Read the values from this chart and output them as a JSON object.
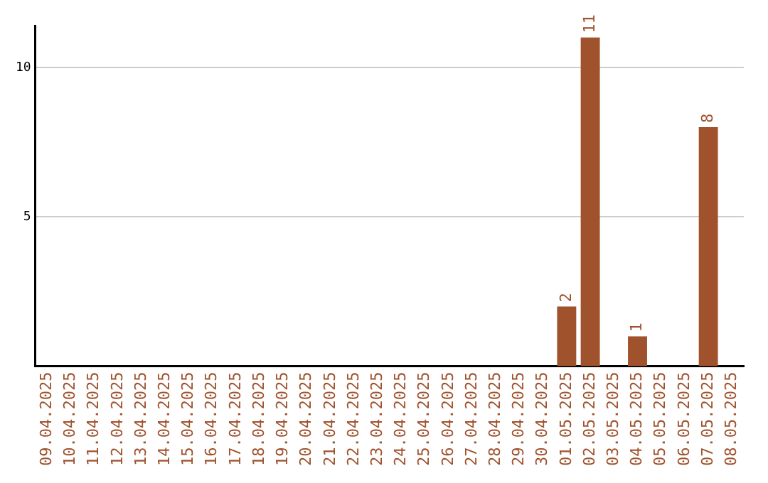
{
  "chart_data": {
    "type": "bar",
    "categories": [
      "09.04.2025",
      "10.04.2025",
      "11.04.2025",
      "12.04.2025",
      "13.04.2025",
      "14.04.2025",
      "15.04.2025",
      "16.04.2025",
      "17.04.2025",
      "18.04.2025",
      "19.04.2025",
      "20.04.2025",
      "21.04.2025",
      "22.04.2025",
      "23.04.2025",
      "24.04.2025",
      "25.04.2025",
      "26.04.2025",
      "27.04.2025",
      "28.04.2025",
      "29.04.2025",
      "30.04.2025",
      "01.05.2025",
      "02.05.2025",
      "03.05.2025",
      "04.05.2025",
      "05.05.2025",
      "06.05.2025",
      "07.05.2025",
      "08.05.2025"
    ],
    "values": [
      0,
      0,
      0,
      0,
      0,
      0,
      0,
      0,
      0,
      0,
      0,
      0,
      0,
      0,
      0,
      0,
      0,
      0,
      0,
      0,
      0,
      0,
      2,
      11,
      0,
      1,
      0,
      0,
      8,
      0
    ],
    "value_labels": [
      null,
      null,
      null,
      null,
      null,
      null,
      null,
      null,
      null,
      null,
      null,
      null,
      null,
      null,
      null,
      null,
      null,
      null,
      null,
      null,
      null,
      null,
      "2",
      "11",
      null,
      "1",
      null,
      null,
      "8",
      null
    ],
    "color": "#a0522d",
    "ylim": [
      0,
      11.4
    ],
    "yticks": [
      5,
      10
    ],
    "grid": "y",
    "legend": false
  }
}
